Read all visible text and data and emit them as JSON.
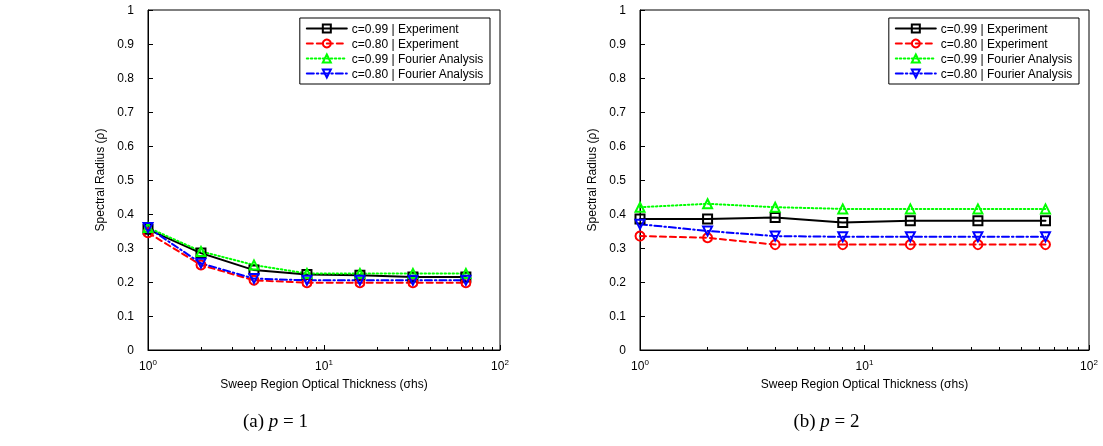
{
  "chart_data": [
    {
      "type": "line",
      "title": "(a) p = 1",
      "xlabel": "Sweep Region Optical Thickness (σhs)",
      "ylabel": "Spectral Radius (ρ)",
      "log": "x",
      "x": [
        1,
        2,
        4,
        8,
        16,
        32,
        64
      ],
      "xlim": [
        1,
        100
      ],
      "xticks": [
        {
          "value": 1,
          "label": "10$^{0}$"
        },
        {
          "value": 10,
          "label": "10$^{1}$"
        },
        {
          "value": 100,
          "label": "10$^{2}$"
        }
      ],
      "ylim": [
        0,
        1
      ],
      "yticks": [
        0,
        0.1,
        0.2,
        0.3,
        0.4,
        0.5,
        0.6,
        0.7,
        0.8,
        0.9,
        1
      ],
      "grid": false,
      "legend": "top right",
      "series": [
        {
          "name": "c=0.99 | Experiment",
          "color": "#000000",
          "marker": "square",
          "line_style": "solid",
          "values": [
            0.355,
            0.285,
            0.235,
            0.222,
            0.22,
            0.215,
            0.215
          ]
        },
        {
          "name": "c=0.80 | Experiment",
          "color": "#ff0000",
          "marker": "circle",
          "line_style": "dashed",
          "values": [
            0.345,
            0.25,
            0.205,
            0.198,
            0.198,
            0.198,
            0.198
          ]
        },
        {
          "name": "c=0.99 | Fourier Analysis",
          "color": "#00ff00",
          "marker": "triangle",
          "line_style": "dotted",
          "values": [
            0.36,
            0.29,
            0.25,
            0.225,
            0.225,
            0.225,
            0.225
          ]
        },
        {
          "name": "c=0.80 | Fourier Analysis",
          "color": "#0000ff",
          "marker": "triangle-down",
          "line_style": "dashdot",
          "values": [
            0.36,
            0.255,
            0.21,
            0.205,
            0.205,
            0.205,
            0.205
          ]
        }
      ]
    },
    {
      "type": "line",
      "title": "(b) p = 2",
      "xlabel": "Sweep Region Optical Thickness (σhs)",
      "ylabel": "Spectral Radius (ρ)",
      "log": "x",
      "x": [
        1,
        2,
        4,
        8,
        16,
        32,
        64
      ],
      "xlim": [
        1,
        100
      ],
      "xticks": [
        {
          "value": 1,
          "label": "10$^{0}$"
        },
        {
          "value": 10,
          "label": "10$^{1}$"
        },
        {
          "value": 100,
          "label": "10$^{2}$"
        }
      ],
      "ylim": [
        0,
        1
      ],
      "yticks": [
        0,
        0.1,
        0.2,
        0.3,
        0.4,
        0.5,
        0.6,
        0.7,
        0.8,
        0.9,
        1
      ],
      "grid": false,
      "legend": "top right",
      "series": [
        {
          "name": "c=0.99 | Experiment",
          "color": "#000000",
          "marker": "square",
          "line_style": "solid",
          "values": [
            0.385,
            0.385,
            0.39,
            0.375,
            0.38,
            0.38,
            0.38
          ]
        },
        {
          "name": "c=0.80 | Experiment",
          "color": "#ff0000",
          "marker": "circle",
          "line_style": "dashed",
          "values": [
            0.335,
            0.33,
            0.31,
            0.31,
            0.31,
            0.31,
            0.31
          ]
        },
        {
          "name": "c=0.99 | Fourier Analysis",
          "color": "#00ff00",
          "marker": "triangle",
          "line_style": "dotted",
          "values": [
            0.42,
            0.43,
            0.42,
            0.415,
            0.415,
            0.415,
            0.415
          ]
        },
        {
          "name": "c=0.80 | Fourier Analysis",
          "color": "#0000ff",
          "marker": "triangle-down",
          "line_style": "dashdot",
          "values": [
            0.37,
            0.35,
            0.335,
            0.333,
            0.333,
            0.333,
            0.333
          ]
        }
      ]
    }
  ]
}
